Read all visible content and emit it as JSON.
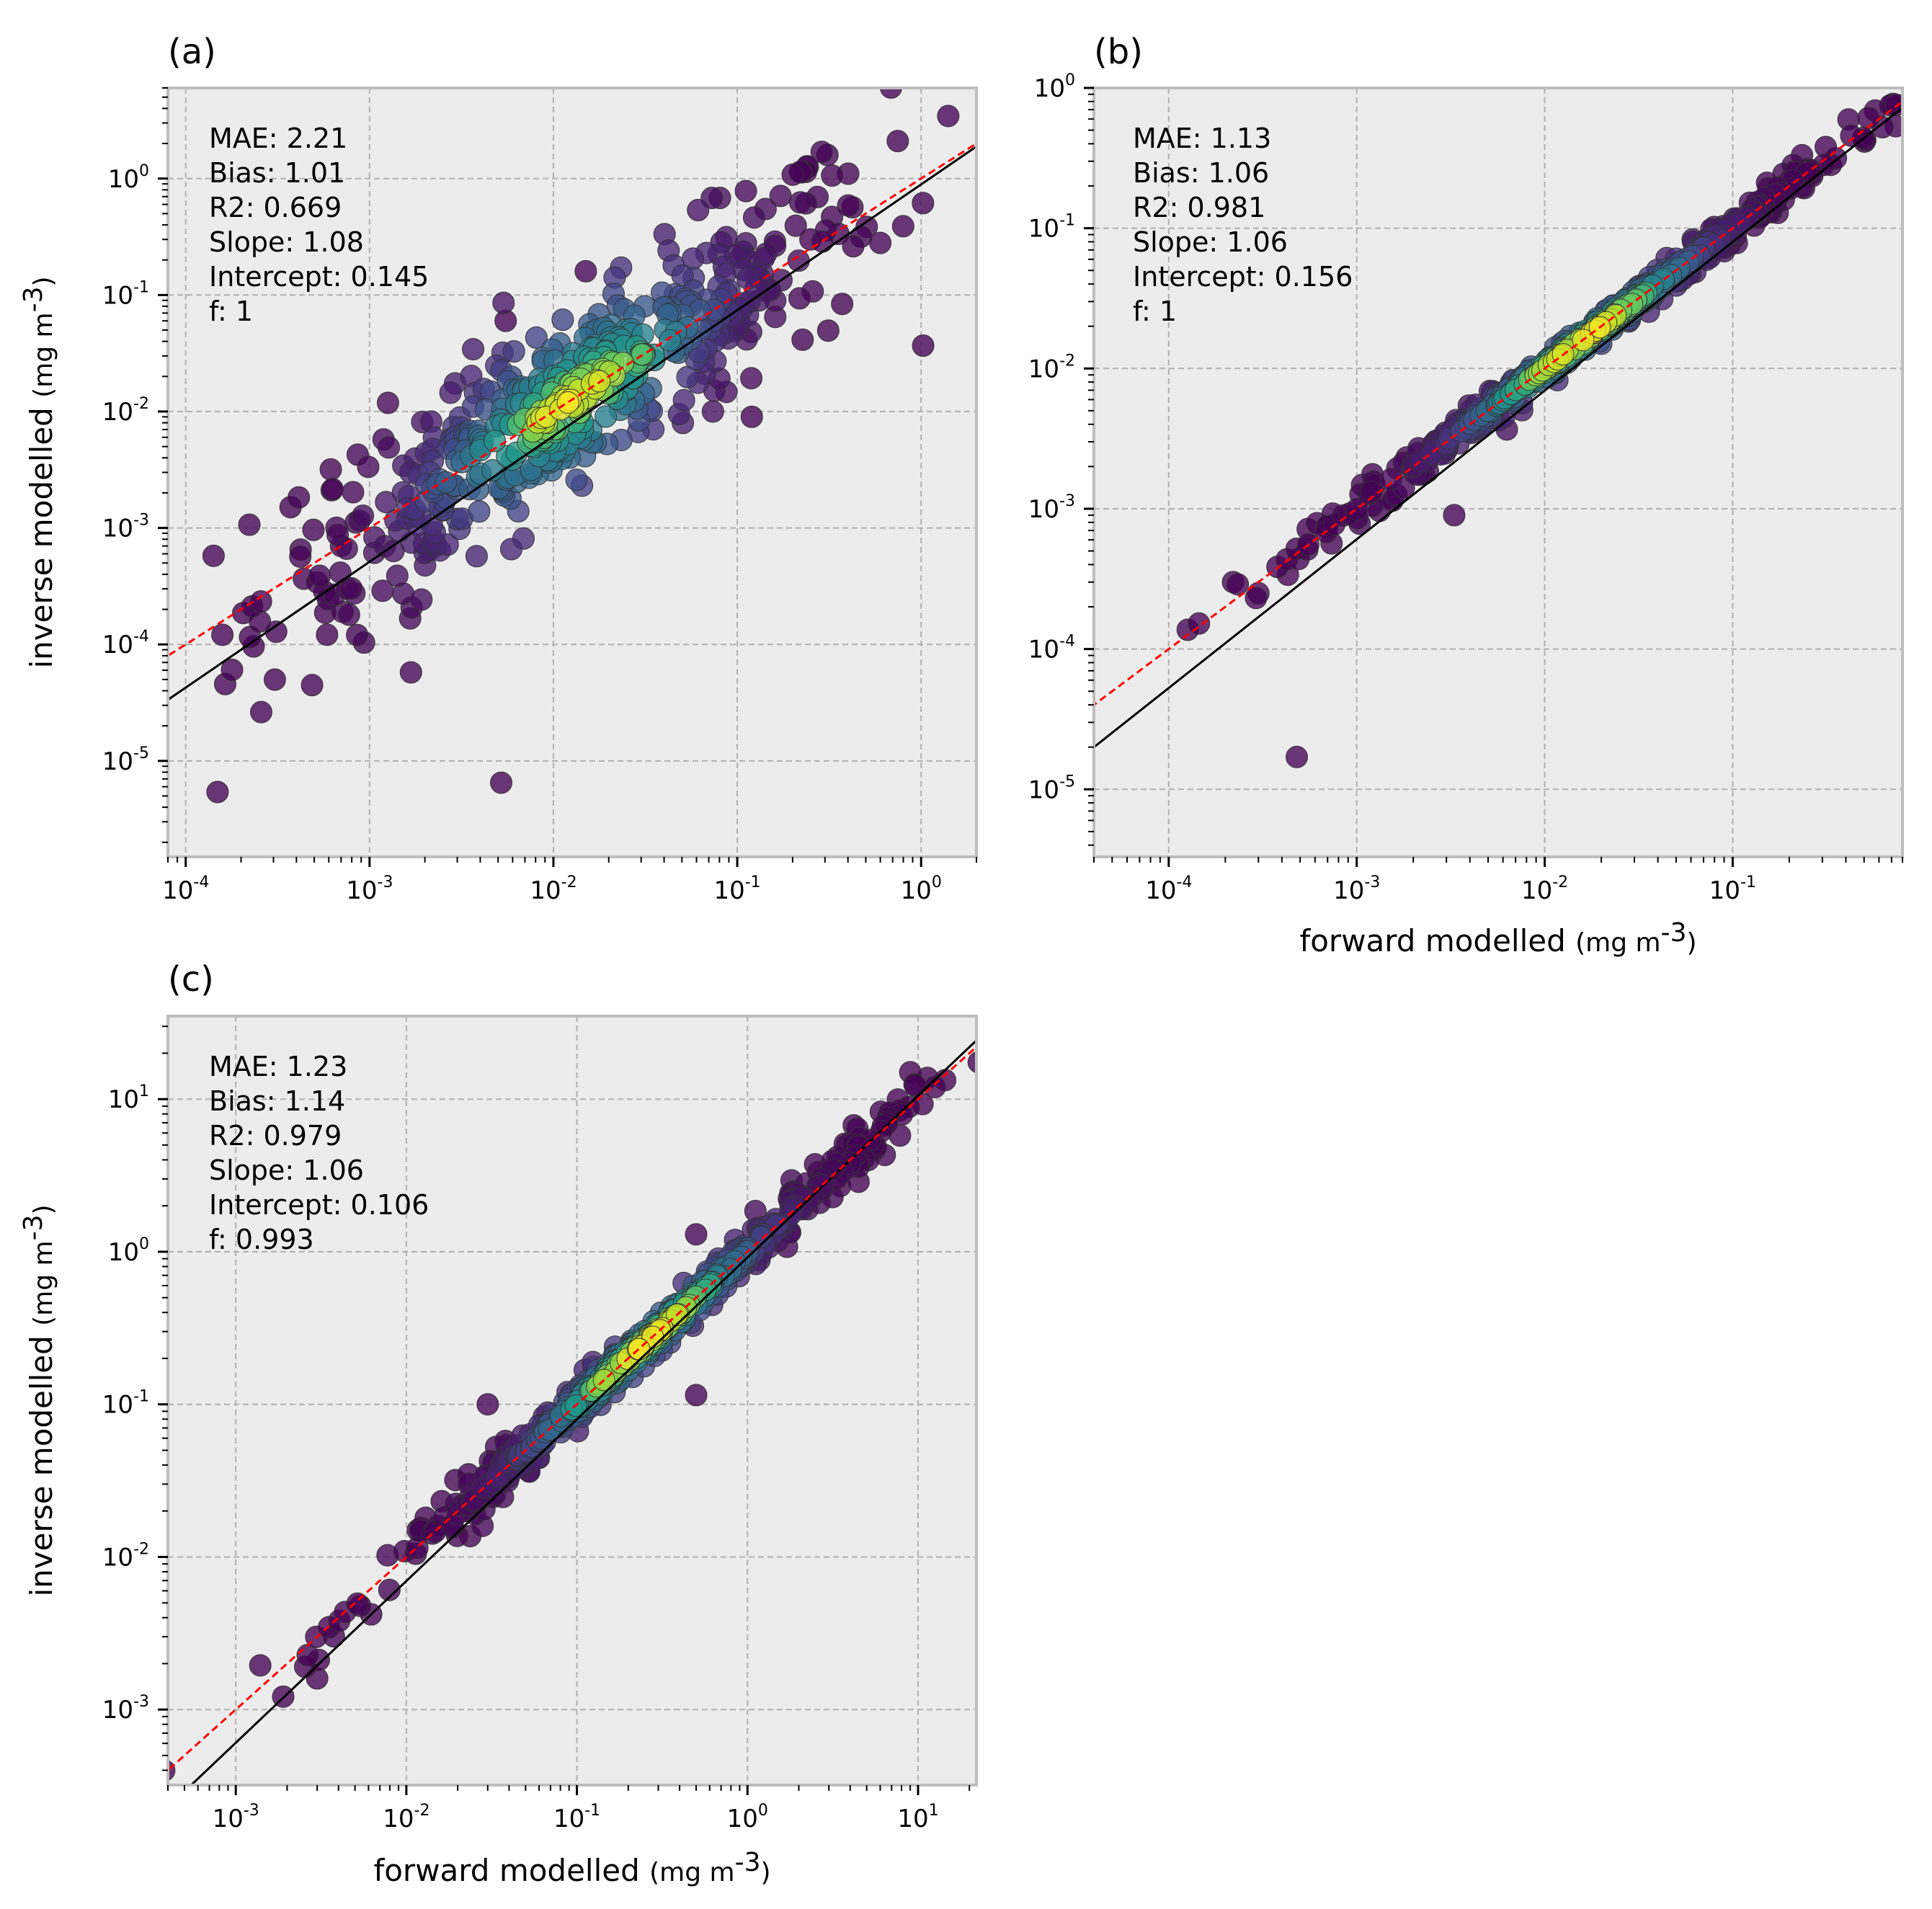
{
  "figure": {
    "background": "#ffffff",
    "axes_facecolor": "#ececec",
    "spine_color": "#bdbdbd",
    "grid_color": "#b0b0b0",
    "fit_line_color": "#000000",
    "one_to_one_color": "#ff0000",
    "colormap": "viridis"
  },
  "chart_data": [
    {
      "panel": "(a)",
      "type": "scatter",
      "title": "(a)",
      "xscale": "log",
      "yscale": "log",
      "xlim": [
        8e-05,
        2.0
      ],
      "ylim": [
        1.5e-06,
        6.0
      ],
      "xticks": [
        -4,
        -3,
        -2,
        -1,
        0
      ],
      "yticks": [
        -5,
        -4,
        -3,
        -2,
        -1,
        0
      ],
      "xlabel": "",
      "ylabel": "inverse modelled",
      "ylabel_unit": "(mg m",
      "ylabel_unit_exp": "-3",
      "ylabel_unit_close": ")",
      "stats": [
        "MAE: 2.21",
        "Bias:  1.01",
        "R2: 0.669",
        "Slope: 1.08",
        "Intercept: 0.145",
        "f: 1"
      ],
      "fit_line": {
        "slope": 1.08,
        "intercept": 0.145,
        "style": "solid"
      },
      "one_to_one": {
        "slope": 1.0,
        "intercept": 0.0,
        "style": "dashed"
      },
      "points": {
        "center_log": [
          -1.9,
          -1.9
        ],
        "spread_log": 0.85,
        "scatter_log": 0.32,
        "count": 520,
        "outliers": [
          [
            0.0052,
            6.5e-06
          ],
          [
            0.12,
            0.009
          ],
          [
            0.0055,
            0.06
          ],
          [
            0.0007,
            0.0007
          ],
          [
            0.25,
            0.3
          ],
          [
            0.6,
            0.28
          ],
          [
            0.015,
            0.16
          ]
        ]
      }
    },
    {
      "panel": "(b)",
      "type": "scatter",
      "title": "(b)",
      "xscale": "log",
      "yscale": "log",
      "xlim": [
        4e-05,
        0.8
      ],
      "ylim": [
        3.3e-06,
        1.0
      ],
      "xticks": [
        -4,
        -3,
        -2,
        -1
      ],
      "yticks": [
        -5,
        -4,
        -3,
        -2,
        -1,
        0
      ],
      "xlabel": "forward modelled",
      "xlabel_unit": "(mg m",
      "xlabel_unit_exp": "-3",
      "xlabel_unit_close": ")",
      "ylabel": "",
      "stats": [
        "MAE: 1.13",
        "Bias:  1.06",
        "R2: 0.981",
        "Slope: 1.06",
        "Intercept: 0.156",
        "f: 1"
      ],
      "fit_line": {
        "slope": 1.06,
        "intercept": 0.156,
        "style": "solid"
      },
      "one_to_one": {
        "slope": 1.0,
        "intercept": 0.0,
        "style": "dashed"
      },
      "points": {
        "center_log": [
          -1.8,
          -1.8
        ],
        "spread_log": 0.7,
        "scatter_log": 0.05,
        "count": 500,
        "outliers": [
          [
            0.00048,
            1.7e-05
          ],
          [
            0.0033,
            0.0009
          ],
          [
            0.0015,
            0.0012
          ],
          [
            0.00022,
            0.0003
          ],
          [
            0.0003,
            0.00025
          ]
        ]
      }
    },
    {
      "panel": "(c)",
      "type": "scatter",
      "title": "(c)",
      "xscale": "log",
      "yscale": "log",
      "xlim": [
        0.0004,
        22.0
      ],
      "ylim": [
        0.00032,
        35.0
      ],
      "xticks": [
        -3,
        -2,
        -1,
        0,
        1
      ],
      "yticks": [
        -3,
        -2,
        -1,
        0,
        1
      ],
      "xlabel": "forward modelled",
      "xlabel_unit": "(mg m",
      "xlabel_unit_exp": "-3",
      "xlabel_unit_close": ")",
      "ylabel": "inverse modelled",
      "ylabel_unit": "(mg m",
      "ylabel_unit_exp": "-3",
      "ylabel_unit_close": ")",
      "stats": [
        "MAE: 1.23",
        "Bias:  1.14",
        "R2: 0.979",
        "Slope: 1.06",
        "Intercept: 0.106",
        "f: 0.993"
      ],
      "fit_line": {
        "slope": 1.06,
        "intercept": 0.106,
        "style": "solid"
      },
      "one_to_one": {
        "slope": 1.0,
        "intercept": 0.0,
        "style": "dashed"
      },
      "points": {
        "center_log": [
          -0.6,
          -0.6
        ],
        "spread_log": 0.75,
        "scatter_log": 0.06,
        "count": 520,
        "outliers": [
          [
            0.5,
            0.115
          ],
          [
            3.5,
            2.7
          ],
          [
            0.003,
            0.0016
          ],
          [
            0.5,
            1.3
          ],
          [
            9.0,
            15.0
          ],
          [
            0.03,
            0.1
          ]
        ]
      }
    }
  ]
}
